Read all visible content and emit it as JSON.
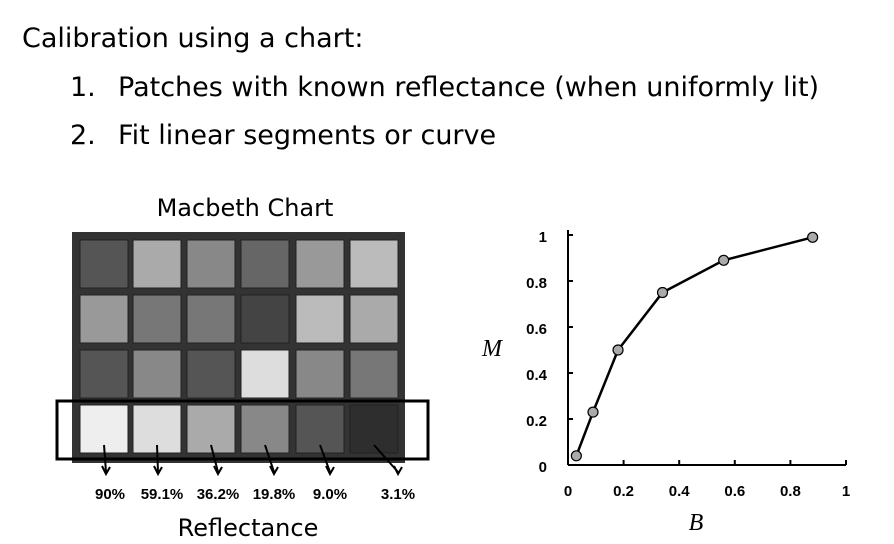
{
  "slide": {
    "heading": "Calibration using a chart:",
    "items": [
      "1.",
      "Patches with known reflectance (when uniformly lit)",
      "2.",
      "Fit linear segments or curve"
    ]
  },
  "macbeth": {
    "title": "Macbeth Chart",
    "reflectances": [
      "90%",
      "59.1%",
      "36.2%",
      "19.8%",
      "9.0%",
      "3.1%"
    ],
    "caption": "Reflectance"
  },
  "chart_data": {
    "type": "line",
    "x_label": "B",
    "y_label": "M",
    "x": [
      0.03,
      0.09,
      0.18,
      0.34,
      0.56,
      0.88
    ],
    "series": [
      {
        "color": "#000000",
        "values": [
          0.04,
          0.23,
          0.5,
          0.75,
          0.89,
          0.99
        ]
      }
    ],
    "xlim": [
      0,
      1
    ],
    "ylim": [
      0,
      1
    ],
    "xticks": [
      0,
      0.2,
      0.4,
      0.6,
      0.8,
      1
    ],
    "yticks": [
      0,
      0.2,
      0.4,
      0.6,
      0.8,
      1
    ],
    "grid": false
  }
}
